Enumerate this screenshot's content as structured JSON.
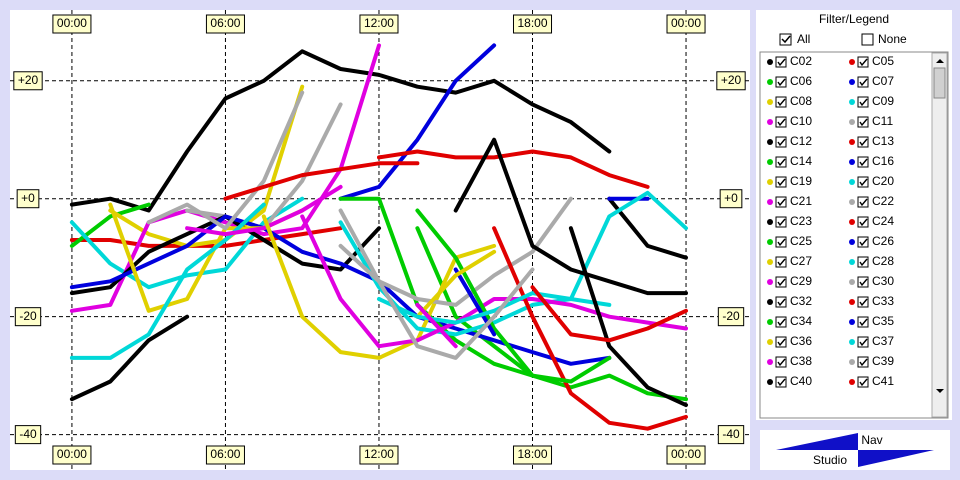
{
  "chart_data": {
    "type": "line",
    "x": [
      0,
      1.5,
      3,
      4.5,
      6,
      7.5,
      9,
      10.5,
      12,
      13.5,
      15,
      16.5,
      18,
      19.5,
      21,
      22.5,
      24
    ],
    "xlim": [
      -2.42,
      26.5
    ],
    "xticks": [
      {
        "value": 0,
        "label": "00:00"
      },
      {
        "value": 6,
        "label": "06:00"
      },
      {
        "value": 12,
        "label": "12:00"
      },
      {
        "value": 18,
        "label": "18:00"
      },
      {
        "value": 24,
        "label": "00:00"
      }
    ],
    "ylim": [
      -46,
      32
    ],
    "yticks": [
      {
        "value": 20,
        "label": "+20"
      },
      {
        "value": 0,
        "label": "+0"
      },
      -20,
      -40
    ],
    "grid": true,
    "series": [
      {
        "name": "C02",
        "color": "#000000",
        "values": [
          -1,
          0,
          -2,
          8,
          17,
          20,
          25,
          22,
          21,
          19,
          18,
          20,
          16,
          13,
          8,
          null,
          null
        ]
      },
      {
        "name": "C05",
        "color": "#e00000",
        "values": [
          -7,
          -7,
          -8,
          -8,
          -8,
          -7,
          -6,
          -5,
          null,
          null,
          null,
          null,
          null,
          null,
          null,
          null,
          null
        ]
      },
      {
        "name": "C06",
        "color": "#00cc00",
        "values": [
          -8,
          -3,
          -1,
          null,
          null,
          null,
          null,
          null,
          null,
          null,
          null,
          null,
          null,
          null,
          null,
          null,
          null
        ]
      },
      {
        "name": "C07",
        "color": "#0000dd",
        "values": [
          null,
          null,
          null,
          null,
          null,
          null,
          null,
          0,
          2,
          10,
          20,
          26,
          null,
          null,
          null,
          null,
          null
        ]
      },
      {
        "name": "C08",
        "color": "#e0d000",
        "values": [
          null,
          -2,
          -6,
          -8,
          -7,
          -2,
          19,
          null,
          null,
          null,
          null,
          null,
          null,
          null,
          null,
          null,
          null
        ]
      },
      {
        "name": "C09",
        "color": "#00d8d8",
        "values": [
          -4,
          -11,
          -15,
          -13,
          -12,
          -4,
          0,
          null,
          null,
          null,
          null,
          null,
          null,
          null,
          null,
          null,
          null
        ]
      },
      {
        "name": "C10",
        "color": "#e000e0",
        "values": [
          -19,
          -18,
          -4,
          -2,
          -4,
          -6,
          -5,
          5,
          26,
          null,
          null,
          null,
          null,
          null,
          null,
          null,
          null
        ]
      },
      {
        "name": "C11",
        "color": "#aaaaaa",
        "values": [
          null,
          null,
          null,
          -2,
          -3,
          -5,
          3,
          16,
          null,
          null,
          null,
          null,
          null,
          null,
          null,
          null,
          null
        ]
      },
      {
        "name": "C12",
        "color": "#000000",
        "values": [
          -16,
          -15,
          -9,
          -6,
          -3,
          -7,
          -11,
          -12,
          -5,
          null,
          null,
          null,
          null,
          null,
          null,
          null,
          null
        ]
      },
      {
        "name": "C13",
        "color": "#e00000",
        "values": [
          null,
          null,
          null,
          null,
          null,
          null,
          null,
          null,
          7,
          8,
          7,
          7,
          8,
          7,
          4,
          2,
          null
        ]
      },
      {
        "name": "C14",
        "color": "#00cc00",
        "values": [
          null,
          null,
          null,
          null,
          null,
          null,
          null,
          null,
          null,
          -5,
          -20,
          -25,
          -30,
          -32,
          -30,
          -33,
          -34
        ]
      },
      {
        "name": "C16",
        "color": "#0000dd",
        "values": [
          -15,
          -14,
          -11,
          -8,
          -3,
          -5,
          -9,
          -11,
          -14,
          -20,
          -22,
          -24,
          -26,
          -28,
          -27,
          null,
          null
        ]
      },
      {
        "name": "C19",
        "color": "#e0d000",
        "values": [
          null,
          -1,
          -19,
          -17,
          -5,
          -5,
          -2,
          null,
          null,
          null,
          null,
          null,
          null,
          null,
          null,
          null,
          null
        ]
      },
      {
        "name": "C20",
        "color": "#00d8d8",
        "values": [
          -27,
          -27,
          -23,
          -12,
          -7,
          -1,
          null,
          null,
          null,
          null,
          null,
          null,
          null,
          null,
          null,
          null,
          null
        ]
      },
      {
        "name": "C21",
        "color": "#e000e0",
        "values": [
          null,
          null,
          null,
          -5,
          -6,
          -5,
          -2,
          2,
          null,
          null,
          null,
          null,
          null,
          null,
          null,
          null,
          null
        ]
      },
      {
        "name": "C22",
        "color": "#aaaaaa",
        "values": [
          null,
          null,
          -4,
          -1,
          -5,
          3,
          18,
          null,
          null,
          null,
          null,
          null,
          null,
          null,
          null,
          null,
          null
        ]
      },
      {
        "name": "C23",
        "color": "#000000",
        "values": [
          -34,
          -31,
          -24,
          -20,
          null,
          null,
          null,
          null,
          null,
          null,
          null,
          null,
          null,
          null,
          0,
          -8,
          -10
        ]
      },
      {
        "name": "C24",
        "color": "#e00000",
        "values": [
          null,
          null,
          null,
          null,
          0,
          2,
          4,
          5,
          6,
          6,
          null,
          null,
          null,
          null,
          null,
          null,
          null
        ]
      },
      {
        "name": "C25",
        "color": "#00cc00",
        "values": [
          null,
          null,
          null,
          null,
          null,
          null,
          null,
          0,
          0,
          -18,
          -24,
          -28,
          -30,
          null,
          null,
          null,
          null
        ]
      },
      {
        "name": "C26",
        "color": "#0000dd",
        "values": [
          null,
          null,
          null,
          null,
          null,
          null,
          null,
          null,
          null,
          null,
          null,
          null,
          null,
          null,
          0,
          0,
          null
        ]
      },
      {
        "name": "C27",
        "color": "#e0d000",
        "values": [
          null,
          null,
          null,
          null,
          null,
          -3,
          -20,
          -26,
          -27,
          -24,
          -10,
          -8,
          null,
          null,
          null,
          null,
          null
        ]
      },
      {
        "name": "C28",
        "color": "#00d8d8",
        "values": [
          null,
          null,
          null,
          null,
          null,
          null,
          null,
          -4,
          -15,
          -22,
          -23,
          -21,
          -18,
          -17,
          -3,
          1,
          -5
        ]
      },
      {
        "name": "C29",
        "color": "#e000e0",
        "values": [
          null,
          null,
          null,
          null,
          null,
          null,
          -3,
          -17,
          -25,
          -24,
          -21,
          -17,
          -17,
          -18,
          -20,
          -21,
          -22
        ]
      },
      {
        "name": "C30",
        "color": "#aaaaaa",
        "values": [
          null,
          null,
          null,
          null,
          null,
          null,
          null,
          -8,
          -14,
          -17,
          -18,
          -13,
          -9,
          0,
          null,
          null,
          null
        ]
      },
      {
        "name": "C32",
        "color": "#000000",
        "values": [
          null,
          null,
          null,
          null,
          null,
          null,
          null,
          null,
          null,
          null,
          -2,
          10,
          -8,
          -12,
          -14,
          -16,
          -16
        ]
      },
      {
        "name": "C33",
        "color": "#e00000",
        "values": [
          null,
          null,
          null,
          null,
          null,
          null,
          null,
          null,
          null,
          null,
          null,
          -5,
          -20,
          -33,
          -38,
          -39,
          -37
        ]
      },
      {
        "name": "C34",
        "color": "#00cc00",
        "values": [
          null,
          null,
          null,
          null,
          null,
          null,
          null,
          null,
          null,
          -2,
          -10,
          -22,
          -30,
          -31,
          -27,
          null,
          null
        ]
      },
      {
        "name": "C35",
        "color": "#0000dd",
        "values": [
          null,
          null,
          null,
          null,
          null,
          null,
          null,
          null,
          null,
          null,
          -12,
          -23,
          null,
          null,
          null,
          null,
          null
        ]
      },
      {
        "name": "C36",
        "color": "#e0d000",
        "values": [
          null,
          null,
          null,
          null,
          null,
          null,
          null,
          null,
          null,
          -20,
          -13,
          -9,
          null,
          null,
          null,
          null,
          null
        ]
      },
      {
        "name": "C37",
        "color": "#00d8d8",
        "values": [
          null,
          null,
          null,
          null,
          null,
          null,
          null,
          null,
          -17,
          -20,
          -21,
          -19,
          -16,
          -17,
          -18,
          null,
          null
        ]
      },
      {
        "name": "C38",
        "color": "#e000e0",
        "values": [
          null,
          null,
          null,
          null,
          null,
          null,
          null,
          null,
          null,
          -18,
          -25,
          null,
          null,
          null,
          null,
          null,
          null
        ]
      },
      {
        "name": "C39",
        "color": "#aaaaaa",
        "values": [
          null,
          null,
          null,
          null,
          null,
          null,
          null,
          -2,
          -14,
          -25,
          -27,
          -20,
          -12,
          null,
          null,
          null,
          null
        ]
      },
      {
        "name": "C40",
        "color": "#000000",
        "values": [
          null,
          null,
          null,
          null,
          null,
          null,
          null,
          null,
          null,
          null,
          null,
          null,
          null,
          -5,
          -25,
          -32,
          -35
        ]
      },
      {
        "name": "C41",
        "color": "#e00000",
        "values": [
          null,
          null,
          null,
          null,
          null,
          null,
          null,
          null,
          null,
          null,
          null,
          null,
          -15,
          -23,
          -24,
          -22,
          -19
        ]
      }
    ]
  },
  "legend_panel": {
    "title": "Filter/Legend",
    "all": "All",
    "none": "None"
  },
  "nav_widget": {
    "top": "Nav",
    "bottom": "Studio"
  }
}
